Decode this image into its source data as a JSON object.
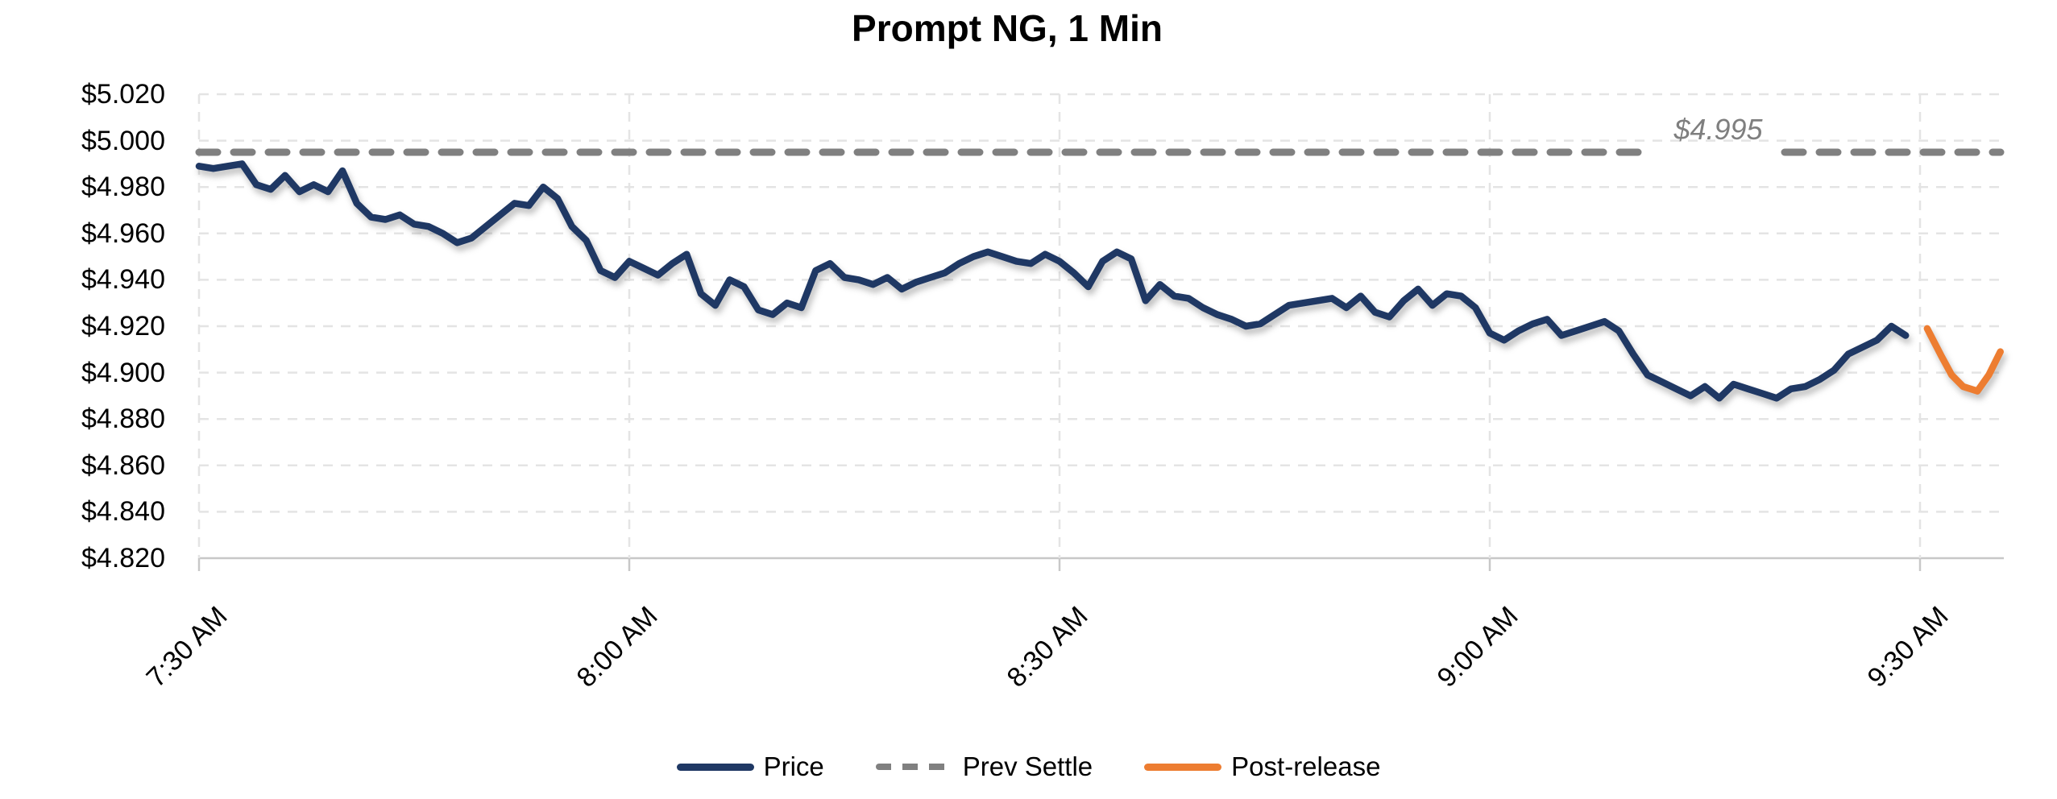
{
  "title_block": {
    "text": "Prompt NG, 1 Min"
  },
  "colors": {
    "price": "#1F3864",
    "prev_settle": "#808080",
    "post_release": "#ED7D31",
    "gridline": "#E4E4E4",
    "axis_line": "#C8C8C8",
    "annotation_gray": "#7F7F7F"
  },
  "chart_data": {
    "type": "line",
    "title": "Prompt NG, 1 Min",
    "xlabel": "",
    "ylabel": "",
    "grid": true,
    "legend_position": "bottom",
    "x_axis": {
      "unit": "minutes after 7:30 AM",
      "xlim": [
        0,
        125.8
      ],
      "tick_minutes": [
        0,
        30,
        60,
        90,
        120
      ],
      "tick_labels": [
        "7:30 AM",
        "8:00 AM",
        "8:30 AM",
        "9:00 AM",
        "9:30 AM"
      ]
    },
    "y_axis": {
      "ylim": [
        4.82,
        5.02
      ],
      "tick_step": 0.02,
      "tick_labels": [
        "$5.020",
        "$5.000",
        "$4.980",
        "$4.960",
        "$4.940",
        "$4.920",
        "$4.900",
        "$4.880",
        "$4.860",
        "$4.840",
        "$4.820"
      ]
    },
    "series": [
      {
        "name": "Price",
        "type": "line",
        "color": "#1F3864",
        "start_minute": 0,
        "interval_minutes": 1,
        "values": [
          4.989,
          4.988,
          4.989,
          4.99,
          4.981,
          4.979,
          4.985,
          4.978,
          4.981,
          4.978,
          4.987,
          4.973,
          4.967,
          4.966,
          4.968,
          4.964,
          4.963,
          4.96,
          4.956,
          4.958,
          4.963,
          4.968,
          4.973,
          4.972,
          4.98,
          4.975,
          4.963,
          4.957,
          4.944,
          4.941,
          4.948,
          4.945,
          4.942,
          4.947,
          4.951,
          4.934,
          4.929,
          4.94,
          4.937,
          4.927,
          4.925,
          4.93,
          4.928,
          4.944,
          4.947,
          4.941,
          4.94,
          4.938,
          4.941,
          4.936,
          4.939,
          4.941,
          4.943,
          4.947,
          4.95,
          4.952,
          4.95,
          4.948,
          4.947,
          4.951,
          4.948,
          4.943,
          4.937,
          4.948,
          4.952,
          4.949,
          4.931,
          4.938,
          4.933,
          4.932,
          4.928,
          4.925,
          4.923,
          4.92,
          4.921,
          4.925,
          4.929,
          4.93,
          4.931,
          4.932,
          4.928,
          4.933,
          4.926,
          4.924,
          4.931,
          4.936,
          4.929,
          4.934,
          4.933,
          4.928,
          4.917,
          4.914,
          4.918,
          4.921,
          4.923,
          4.916,
          4.918,
          4.92,
          4.922,
          4.918,
          4.908,
          4.899,
          4.896,
          4.893,
          4.89,
          4.894,
          4.889,
          4.895,
          4.893,
          4.891,
          4.889,
          4.893,
          4.894,
          4.897,
          4.901,
          4.908,
          4.911,
          4.914,
          4.92,
          4.916
        ]
      },
      {
        "name": "Prev Settle",
        "type": "hline",
        "color": "#808080",
        "dashed": true,
        "value": 4.995,
        "annotation": "$4.995"
      },
      {
        "name": "Post-release",
        "type": "line",
        "color": "#ED7D31",
        "points": [
          [
            120.5,
            4.919
          ],
          [
            121.5,
            4.907
          ],
          [
            122.2,
            4.899
          ],
          [
            123.0,
            4.894
          ],
          [
            124.0,
            4.892
          ],
          [
            124.8,
            4.899
          ],
          [
            125.6,
            4.909
          ]
        ]
      }
    ]
  }
}
